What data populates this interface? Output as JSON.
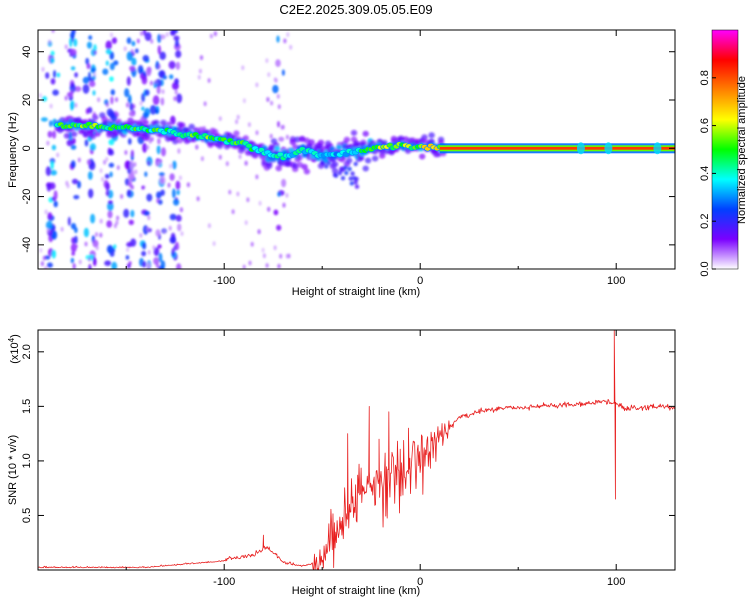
{
  "title": "C2E2.2025.309.05.05.E09",
  "chart_data": [
    {
      "type": "heatmap",
      "name": "spectrogram",
      "xlabel": "Height of straight line (km)",
      "ylabel": "Frequency (Hz)",
      "xlim": [
        -195,
        130
      ],
      "ylim": [
        -50,
        49
      ],
      "xticks": [
        -100,
        0,
        100
      ],
      "yticks": [
        -40,
        -20,
        0,
        20,
        40
      ],
      "colorbar": {
        "label": "Normalized spectral amplitude",
        "range": [
          0,
          1
        ],
        "ticks": [
          0.0,
          0.2,
          0.4,
          0.6,
          0.8
        ],
        "colors": [
          "#ffffff",
          "#7a00ff",
          "#0040ff",
          "#00ffff",
          "#00ff00",
          "#ffff00",
          "#ff8000",
          "#ff0000",
          "#ff00ff"
        ]
      },
      "ridge": {
        "x": [
          -180,
          -165,
          -150,
          -135,
          -120,
          -105,
          -90,
          -80,
          -70,
          -60,
          -50,
          -40,
          -30,
          -20,
          -10,
          0,
          10,
          20,
          60,
          100,
          130
        ],
        "y": [
          9.5,
          9,
          8.5,
          7.5,
          6,
          4,
          2,
          -1.5,
          -3.5,
          -1,
          -3,
          -2,
          -1,
          0.5,
          1,
          0.5,
          0.5,
          0,
          0,
          0,
          0
        ],
        "amplitude": [
          0.55,
          0.55,
          0.5,
          0.5,
          0.5,
          0.55,
          0.5,
          0.45,
          0.45,
          0.4,
          0.4,
          0.35,
          0.45,
          0.6,
          0.55,
          0.6,
          0.7,
          0.75,
          0.8,
          0.8,
          0.8
        ]
      }
    },
    {
      "type": "line",
      "name": "snr",
      "xlabel": "Height of straight line (km)",
      "ylabel": "SNR (10 * v/v)",
      "y_multiplier": "(x10",
      "y_multiplier_exp": "4",
      "xlim": [
        -195,
        130
      ],
      "ylim": [
        0,
        2.2
      ],
      "xticks": [
        -100,
        0,
        100
      ],
      "yticks": [
        0.5,
        1.0,
        1.5,
        2.0
      ],
      "ytick_labels": [
        "0.5",
        "1.0",
        "1.5",
        "2.0"
      ],
      "color": "#e82020",
      "trend": {
        "x": [
          -195,
          -140,
          -120,
          -100,
          -85,
          -78,
          -70,
          -60,
          -50,
          -45,
          -40,
          -35,
          -30,
          -25,
          -20,
          -15,
          -10,
          -5,
          0,
          5,
          10,
          15,
          20,
          30,
          40,
          60,
          80,
          95,
          105,
          120,
          130
        ],
        "y": [
          0.02,
          0.02,
          0.05,
          0.08,
          0.12,
          0.2,
          0.06,
          0.03,
          0.08,
          0.3,
          0.4,
          0.6,
          0.7,
          0.75,
          0.8,
          0.85,
          0.88,
          0.95,
          1.0,
          1.1,
          1.2,
          1.3,
          1.4,
          1.45,
          1.48,
          1.5,
          1.52,
          1.55,
          1.48,
          1.5,
          1.48
        ]
      },
      "spikes": [
        {
          "x": -80,
          "y": 0.32
        },
        {
          "x": -37,
          "y": 1.25
        },
        {
          "x": -26,
          "y": 1.5
        },
        {
          "x": -21,
          "y": 1.2
        },
        {
          "x": -16,
          "y": 1.45
        },
        {
          "x": -6,
          "y": 1.3
        },
        {
          "x": 99,
          "y": 2.2
        },
        {
          "x": 99.6,
          "y": 0.65
        }
      ]
    }
  ]
}
